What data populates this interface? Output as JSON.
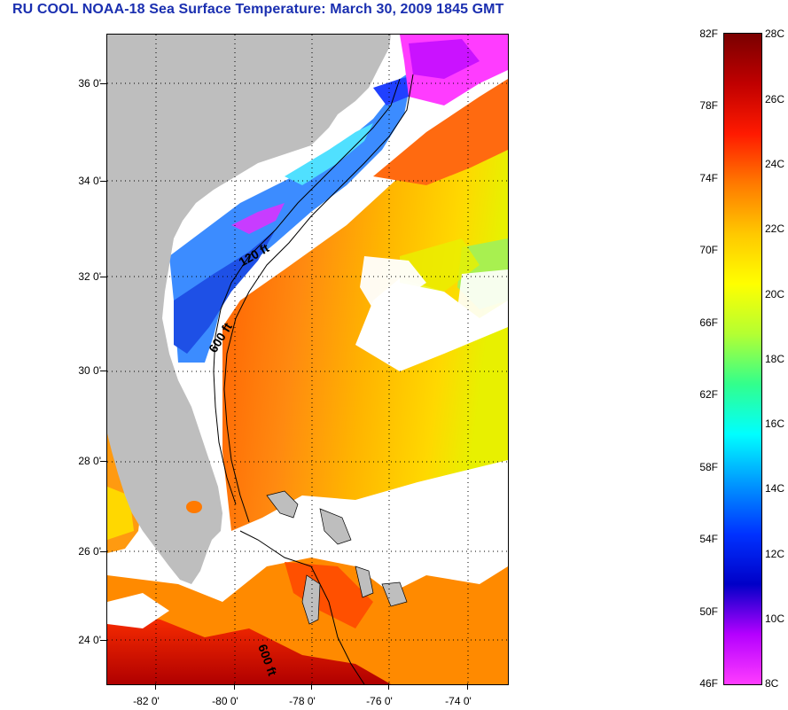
{
  "title": "RU COOL  NOAA-18  Sea Surface Temperature:  March 30, 2009 1845 GMT",
  "map": {
    "lat_labels": [
      "36 0'",
      "34 0'",
      "32 0'",
      "30 0'",
      "28 0'",
      "26 0'",
      "24 0'"
    ],
    "lon_labels": [
      "-82 0'",
      "-80 0'",
      "-78 0'",
      "-76 0'",
      "-74 0'"
    ],
    "contours": [
      "120 ft",
      "600 ft",
      "600 ft"
    ]
  },
  "colorbar": {
    "fahrenheit": [
      "82F",
      "78F",
      "74F",
      "70F",
      "66F",
      "62F",
      "58F",
      "54F",
      "50F",
      "46F"
    ],
    "celsius": [
      "28C",
      "26C",
      "24C",
      "22C",
      "20C",
      "18C",
      "16C",
      "14C",
      "12C",
      "10C",
      "8C"
    ],
    "colors": [
      "#7a0000",
      "#c00000",
      "#ff1a00",
      "#ff7a00",
      "#ffc800",
      "#ffff00",
      "#b4ff32",
      "#32ff8c",
      "#00ffff",
      "#0096ff",
      "#0032ff",
      "#0000c8",
      "#b400ff",
      "#ff3cff"
    ]
  }
}
